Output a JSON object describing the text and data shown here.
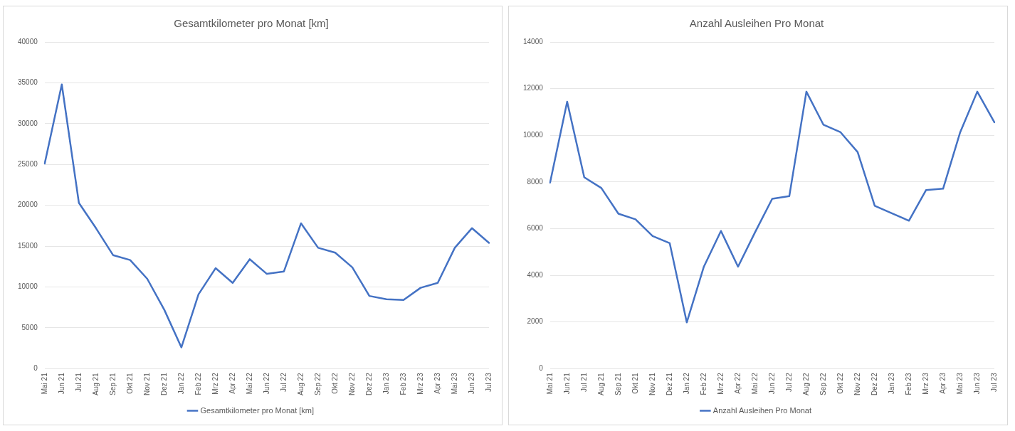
{
  "chart_data": [
    {
      "type": "line",
      "title": "Gesamtkilometer pro Monat [km]",
      "categories": [
        "Mai 21",
        "Jun 21",
        "Jul 21",
        "Aug 21",
        "Sep 21",
        "Okt 21",
        "Nov 21",
        "Dez 21",
        "Jan 22",
        "Feb 22",
        "Mrz 22",
        "Apr 22",
        "Mai 22",
        "Jun 22",
        "Jul 22",
        "Aug 22",
        "Sep 22",
        "Okt 22",
        "Nov 22",
        "Dez 22",
        "Jan 23",
        "Feb 23",
        "Mrz 23",
        "Apr 23",
        "Mai 23",
        "Jun 23",
        "Jul 23"
      ],
      "series": [
        {
          "name": "Gesamtkilometer pro Monat [km]",
          "color": "#4472c4",
          "values": [
            25100,
            34800,
            20300,
            17200,
            13900,
            13300,
            11000,
            7200,
            2600,
            9100,
            12300,
            10500,
            13400,
            11600,
            11900,
            17800,
            14800,
            14200,
            12400,
            8900,
            8500,
            8400,
            9900,
            10500,
            14800,
            17200,
            15400
          ]
        }
      ],
      "ylim": [
        0,
        40000
      ],
      "yticks": [
        0,
        5000,
        10000,
        15000,
        20000,
        25000,
        30000,
        35000,
        40000
      ],
      "grid": "y",
      "legend": "bottom",
      "marker": "none",
      "line_style": "solid"
    },
    {
      "type": "line",
      "title": "Anzahl Ausleihen Pro Monat",
      "categories": [
        "Mai 21",
        "Jun 21",
        "Jul 21",
        "Aug 21",
        "Sep 21",
        "Okt 21",
        "Nov 21",
        "Dez 21",
        "Jan 22",
        "Feb 22",
        "Mrz 22",
        "Apr 22",
        "Mai 22",
        "Jun 22",
        "Jul 22",
        "Aug 22",
        "Sep 22",
        "Okt 22",
        "Nov 22",
        "Dez 22",
        "Jan 23",
        "Feb 23",
        "Mrz 23",
        "Apr 23",
        "Mai 23",
        "Jun 23",
        "Jul 23"
      ],
      "series": [
        {
          "name": "Anzahl Ausleihen Pro Monat",
          "color": "#4472c4",
          "values": [
            7970,
            11440,
            8200,
            7740,
            6640,
            6400,
            5680,
            5380,
            1980,
            4370,
            5900,
            4370,
            5850,
            7280,
            7390,
            11870,
            10450,
            10130,
            9280,
            6980,
            6660,
            6340,
            7650,
            7710,
            10130,
            11870,
            10560
          ]
        }
      ],
      "ylim": [
        0,
        14000
      ],
      "yticks": [
        0,
        2000,
        4000,
        6000,
        8000,
        10000,
        12000,
        14000
      ],
      "grid": "y",
      "legend": "bottom",
      "marker": "none",
      "line_style": "solid"
    }
  ]
}
